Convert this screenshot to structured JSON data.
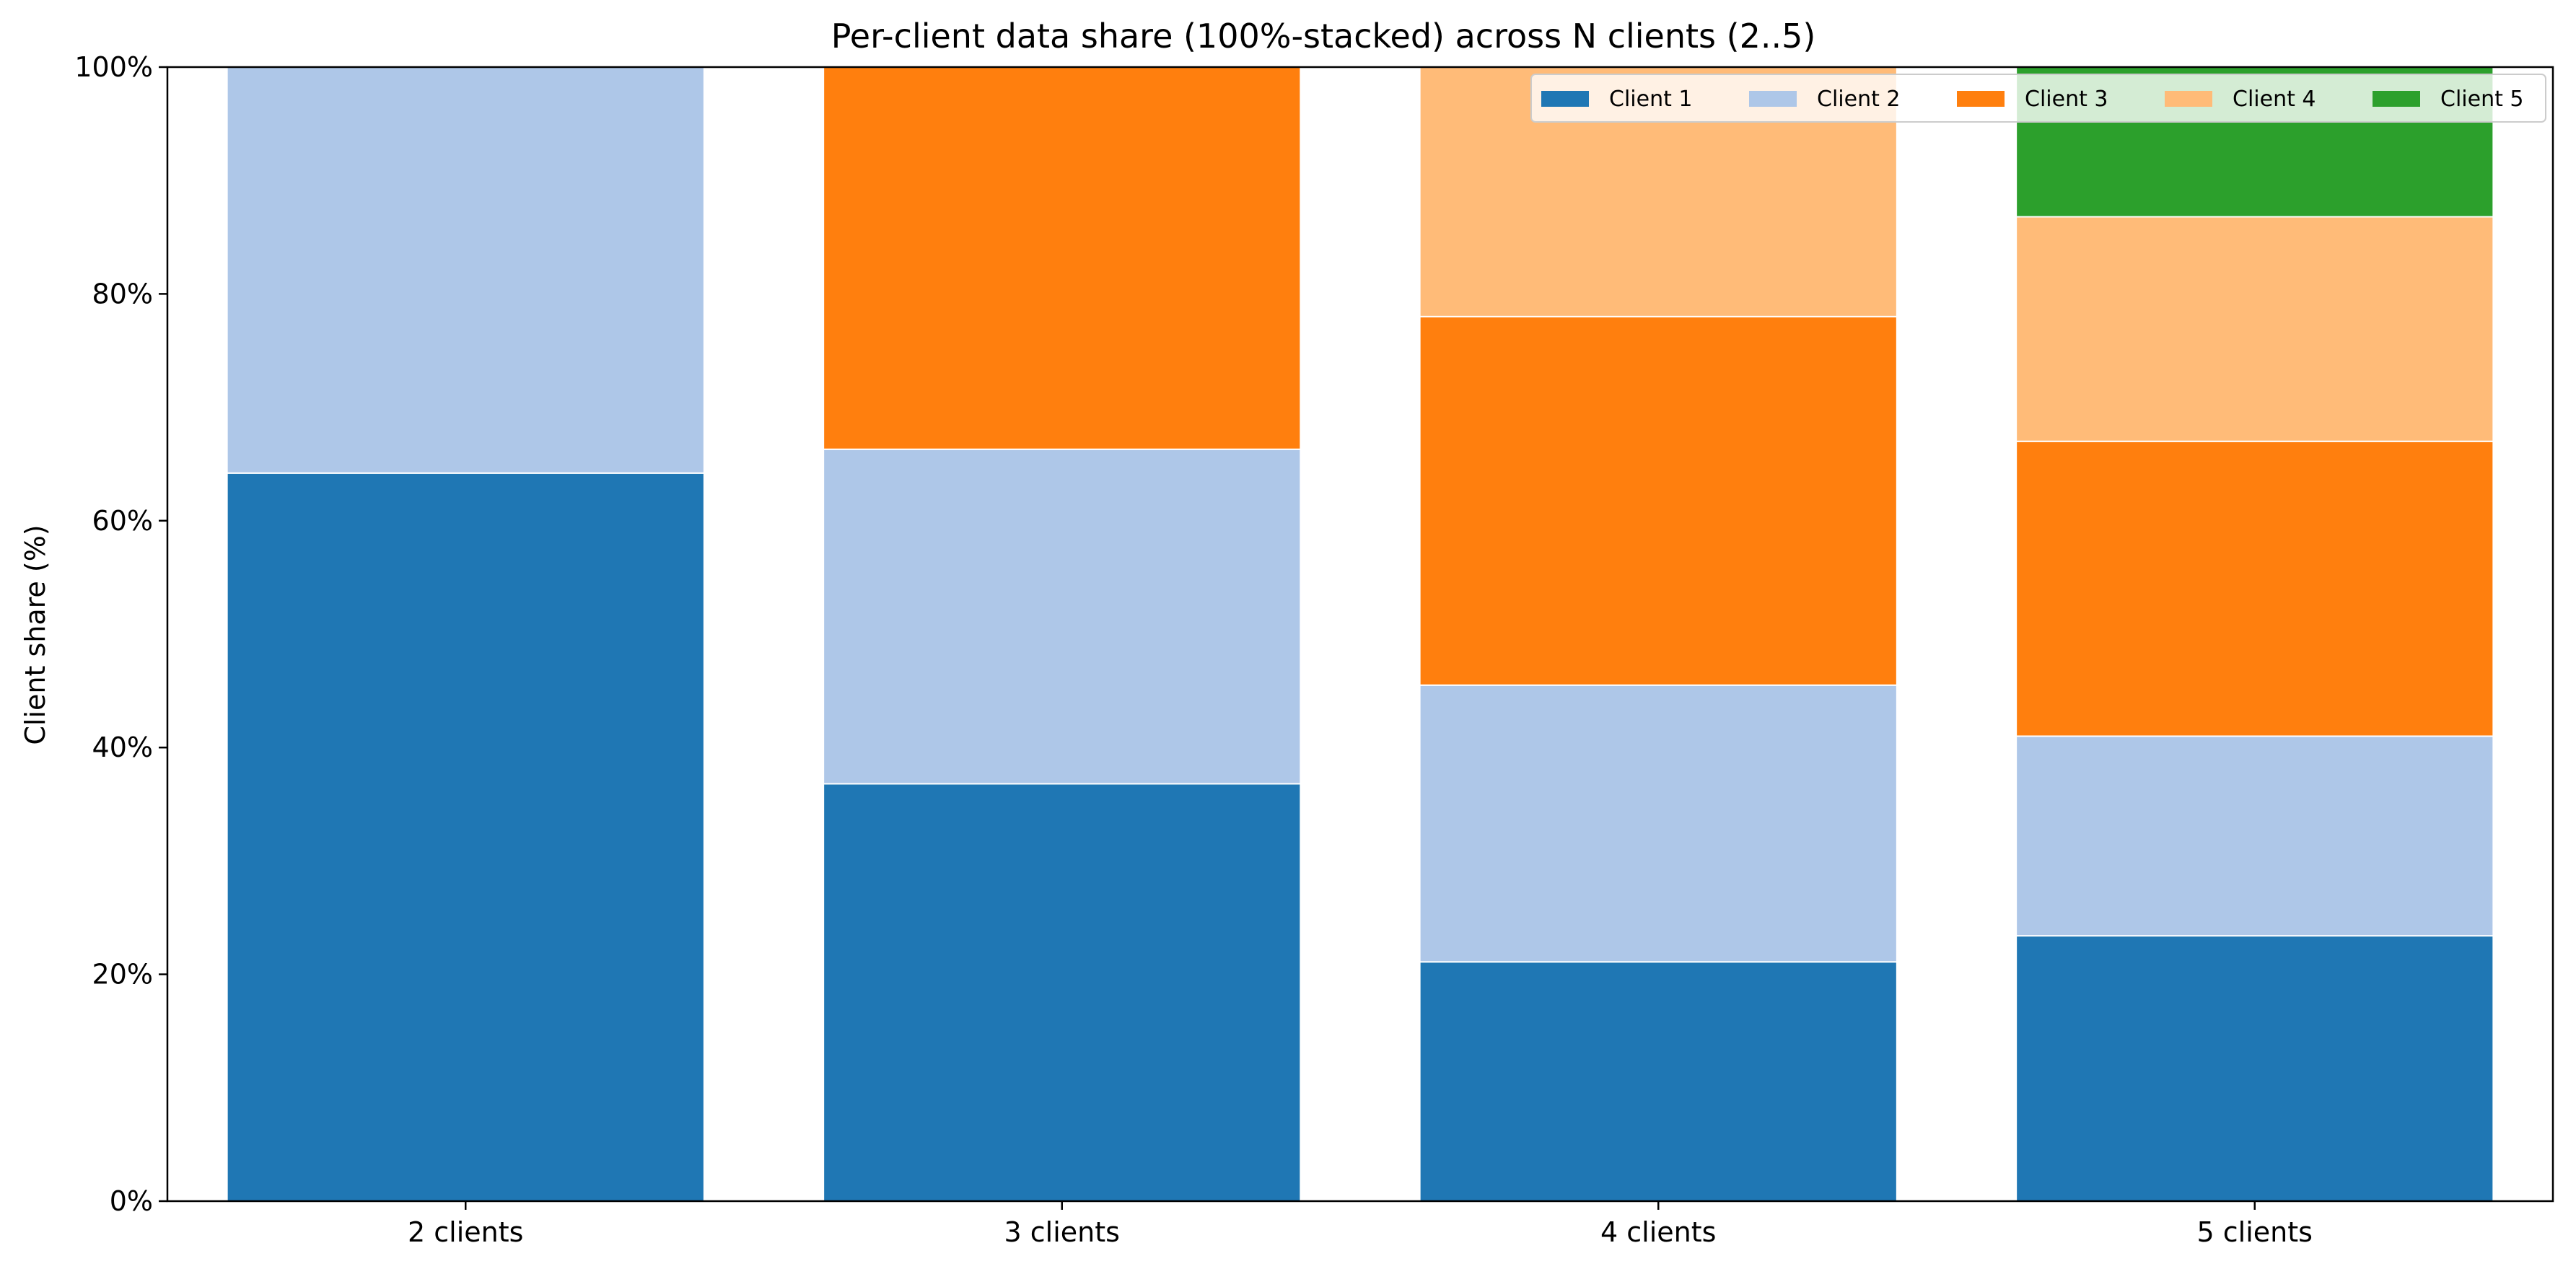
{
  "chart_data": {
    "type": "bar",
    "stacked": "100%",
    "title": "Per-client data share (100%-stacked) across N clients (2..5)",
    "xlabel": "",
    "ylabel": "Client share (%)",
    "ylim": [
      0,
      100
    ],
    "yticks": [
      "0%",
      "20%",
      "40%",
      "60%",
      "80%",
      "100%"
    ],
    "ytick_values": [
      0,
      20,
      40,
      60,
      80,
      100
    ],
    "categories": [
      "2 clients",
      "3 clients",
      "4 clients",
      "5 clients"
    ],
    "series": [
      {
        "name": "Client 1",
        "color": "#1f77b4",
        "values": [
          64.2,
          36.8,
          21.1,
          23.4
        ]
      },
      {
        "name": "Client 2",
        "color": "#aec7e8",
        "values": [
          35.8,
          29.5,
          24.4,
          17.6
        ]
      },
      {
        "name": "Client 3",
        "color": "#ff7f0e",
        "values": [
          null,
          33.7,
          32.5,
          26.0
        ]
      },
      {
        "name": "Client 4",
        "color": "#ffbb78",
        "values": [
          null,
          null,
          22.0,
          19.8
        ]
      },
      {
        "name": "Client 5",
        "color": "#2ca02c",
        "values": [
          null,
          null,
          null,
          13.2
        ]
      }
    ],
    "grid": false,
    "legend_position": "top-right"
  }
}
